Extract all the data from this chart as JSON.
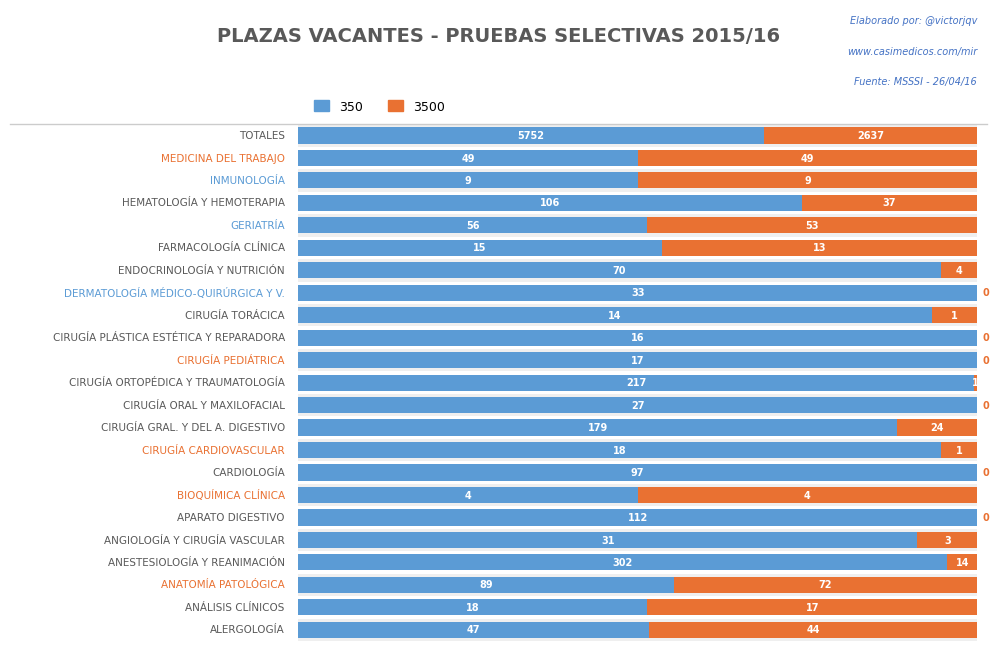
{
  "title": "PLAZAS VACANTES - PRUEBAS SELECTIVAS 2015/16",
  "legend_labels": [
    "350",
    "3500"
  ],
  "bar_color_blue": "#5B9BD5",
  "bar_color_orange": "#E97132",
  "categories": [
    "TOTALES",
    "MEDICINA DEL TRABAJO",
    "INMUNOLOGÍA",
    "HEMATOLOGÍA Y HEMOTERAPIA",
    "GERIATRÍA",
    "FARMACOLOGÍA CLÍNICA",
    "ENDOCRINOLOGÍA Y NUTRICIÓN",
    "DERMATOLOGÍA MÉDICO-QUIRÚRGICA Y V.",
    "CIRUGÍA TORÁCICA",
    "CIRUGÍA PLÁSTICA ESTÉTICA Y REPARADORA",
    "CIRUGÍA PEDIÁTRICA",
    "CIRUGÍA ORTOPÉDICA Y TRAUMATOLOGÍA",
    "CIRUGÍA ORAL Y MAXILOFACIAL",
    "CIRUGÍA GRAL. Y DEL A. DIGESTIVO",
    "CIRUGÍA CARDIOVASCULAR",
    "CARDIOLOGÍA",
    "BIOQUÍMICA CLÍNICA",
    "APARATO DIGESTIVO",
    "ANGIOLOGÍA Y CIRUGÍA VASCULAR",
    "ANESTESIOLOGÍA Y REANIMACIÓN",
    "ANATOMÍA PATOLÓGICA",
    "ANÁLISIS CLÍNICOS",
    "ALERGOLOGÍA"
  ],
  "values_blue": [
    5752,
    49,
    9,
    106,
    56,
    15,
    70,
    33,
    14,
    16,
    17,
    217,
    27,
    179,
    18,
    97,
    4,
    112,
    31,
    302,
    89,
    18,
    47
  ],
  "values_orange": [
    2637,
    49,
    9,
    37,
    53,
    13,
    4,
    0,
    1,
    0,
    0,
    1,
    0,
    24,
    1,
    0,
    4,
    0,
    3,
    14,
    72,
    17,
    44
  ],
  "label_colors": {
    "TOTALES": "#595959",
    "MEDICINA DEL TRABAJO": "#E97132",
    "INMUNOLOGÍA": "#5B9BD5",
    "HEMATOLOGÍA Y HEMOTERAPIA": "#595959",
    "GERIATRÍA": "#5B9BD5",
    "FARMACOLOGÍA CLÍNICA": "#595959",
    "ENDOCRINOLOGÍA Y NUTRICIÓN": "#595959",
    "DERMATOLOGÍA MÉDICO-QUIRÚRGICA Y V.": "#5B9BD5",
    "CIRUGÍA TORÁCICA": "#595959",
    "CIRUGÍA PLÁSTICA ESTÉTICA Y REPARADORA": "#595959",
    "CIRUGÍA PEDIÁTRICA": "#E97132",
    "CIRUGÍA ORTOPÉDICA Y TRAUMATOLOGÍA": "#595959",
    "CIRUGÍA ORAL Y MAXILOFACIAL": "#595959",
    "CIRUGÍA GRAL. Y DEL A. DIGESTIVO": "#595959",
    "CIRUGÍA CARDIOVASCULAR": "#E97132",
    "CARDIOLOGÍA": "#595959",
    "BIOQUÍMICA CLÍNICA": "#E97132",
    "APARATO DIGESTIVO": "#595959",
    "ANGIOLOGÍA Y CIRUGÍA VASCULAR": "#595959",
    "ANESTESIOLOGÍA Y REANIMACIÓN": "#595959",
    "ANATOMÍA PATOLÓGICA": "#E97132",
    "ANÁLISIS CLÍNICOS": "#595959",
    "ALERGOLOGÍA": "#595959"
  },
  "label_color_default": "#595959",
  "ylabel_fontsize": 7.5,
  "value_fontsize": 7,
  "title_fontsize": 14,
  "title_color": "#595959",
  "bar_total": 100
}
